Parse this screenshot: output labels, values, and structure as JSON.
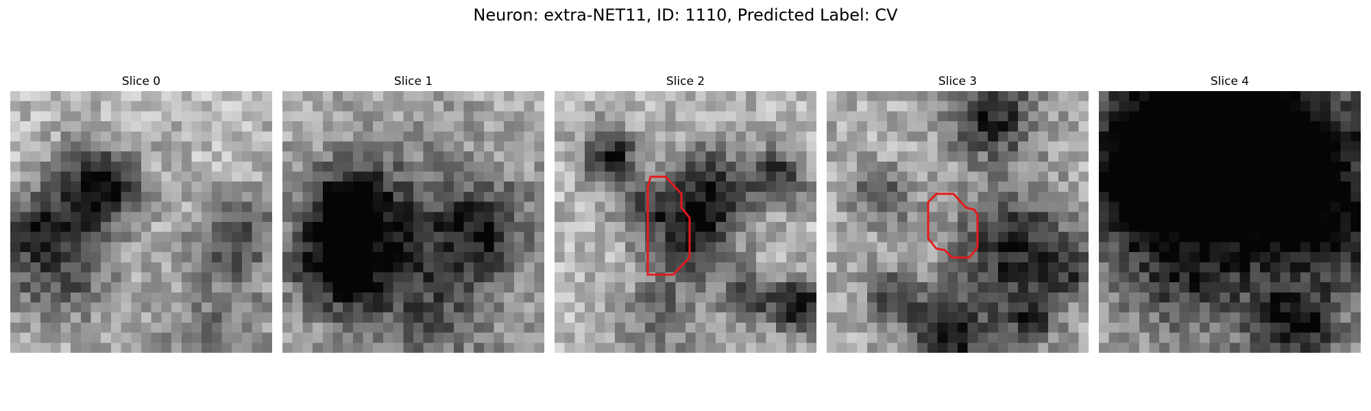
{
  "figure": {
    "title": "Neuron: extra-NET11, ID: 1110, Predicted Label: CV"
  },
  "slices": [
    {
      "label": "Slice 0",
      "has_roi": false
    },
    {
      "label": "Slice 1",
      "has_roi": false
    },
    {
      "label": "Slice 2",
      "has_roi": true
    },
    {
      "label": "Slice 3",
      "has_roi": true
    },
    {
      "label": "Slice 4",
      "has_roi": false
    }
  ],
  "colors": {
    "roi_outline": "#e41a1c",
    "colormap": "grayscale"
  }
}
